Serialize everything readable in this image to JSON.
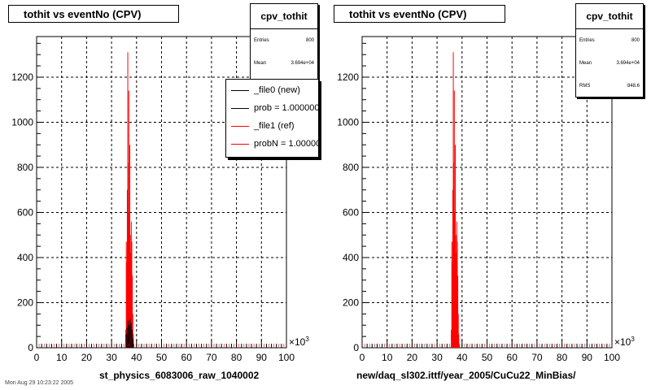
{
  "left": {
    "title": "tothit vs eventNo (CPV)",
    "stats": {
      "name": "cpv_tothit",
      "entries_label": "Entries",
      "entries": "800",
      "mean_label": "Mean",
      "mean": "3.694e+04"
    },
    "legend": [
      {
        "label": "_file0 (new)",
        "color": "#000000"
      },
      {
        "label": "prob = 1.000000",
        "color": "#000000"
      },
      {
        "label": "_file1 (ref)",
        "color": "#ff0000"
      },
      {
        "label": "probN = 1.000000",
        "color": "#ff0000"
      }
    ],
    "x_title": "st_physics_6083006_raw_1040002"
  },
  "right": {
    "title": "tothit vs eventNo (CPV)",
    "stats": {
      "name": "cpv_tothit",
      "entries_label": "Entries",
      "entries": "800",
      "mean_label": "Mean",
      "mean": "3.694e+04",
      "rms_label": "RMS",
      "rms": "848.6"
    },
    "x_title": "new/daq_sl302.ittf/year_2005/CuCu22_MinBias/"
  },
  "footer": "Mon Aug 29 10:23:22 2005",
  "colors": {
    "ref_series": "#ff0000",
    "new_series": "#000000",
    "grid": "#000000"
  },
  "chart_data": [
    {
      "type": "bar",
      "title": "tothit vs eventNo (CPV)",
      "xlabel": "st_physics_6083006_raw_1040002",
      "ylabel": "",
      "x_multiplier": "×10^3",
      "xlim": [
        0,
        100
      ],
      "ylim": [
        0,
        1380
      ],
      "xticks": [
        0,
        10,
        20,
        30,
        40,
        50,
        60,
        70,
        80,
        90,
        100
      ],
      "yticks": [
        0,
        200,
        400,
        600,
        800,
        1000,
        1200
      ],
      "grid": true,
      "legend_position": "top-right",
      "series": [
        {
          "name": "_file1 (ref)",
          "color": "#ff0000",
          "x": [
            35.7,
            35.9,
            36.1,
            36.3,
            36.5,
            36.7,
            36.9,
            37.1,
            37.3,
            37.5,
            37.7,
            37.9,
            38.1,
            38.3,
            38.5,
            38.7,
            38.9
          ],
          "values": [
            80,
            470,
            380,
            700,
            1310,
            820,
            1140,
            600,
            900,
            420,
            500,
            560,
            470,
            320,
            150,
            60,
            10
          ]
        },
        {
          "name": "_file0 (new)",
          "color": "#000000",
          "x": [
            35.8,
            36.2,
            36.6,
            37.0,
            37.4,
            37.8,
            38.2,
            38.6
          ],
          "values": [
            60,
            90,
            120,
            100,
            130,
            110,
            80,
            40
          ]
        }
      ]
    },
    {
      "type": "bar",
      "title": "tothit vs eventNo (CPV)",
      "xlabel": "new/daq_sl302.ittf/year_2005/CuCu22_MinBias/",
      "ylabel": "",
      "x_multiplier": "×10^3",
      "xlim": [
        0,
        100
      ],
      "ylim": [
        0,
        1380
      ],
      "xticks": [
        0,
        10,
        20,
        30,
        40,
        50,
        60,
        70,
        80,
        90,
        100
      ],
      "yticks": [
        0,
        200,
        400,
        600,
        800,
        1000,
        1200
      ],
      "grid": true,
      "series": [
        {
          "name": "cpv_tothit",
          "color": "#ff0000",
          "x": [
            35.7,
            35.9,
            36.1,
            36.3,
            36.5,
            36.7,
            36.9,
            37.1,
            37.3,
            37.5,
            37.7,
            37.9,
            38.1,
            38.3,
            38.5,
            38.7,
            38.9
          ],
          "values": [
            80,
            470,
            380,
            700,
            1310,
            820,
            1140,
            600,
            900,
            420,
            500,
            560,
            470,
            320,
            150,
            60,
            10
          ]
        }
      ]
    }
  ]
}
